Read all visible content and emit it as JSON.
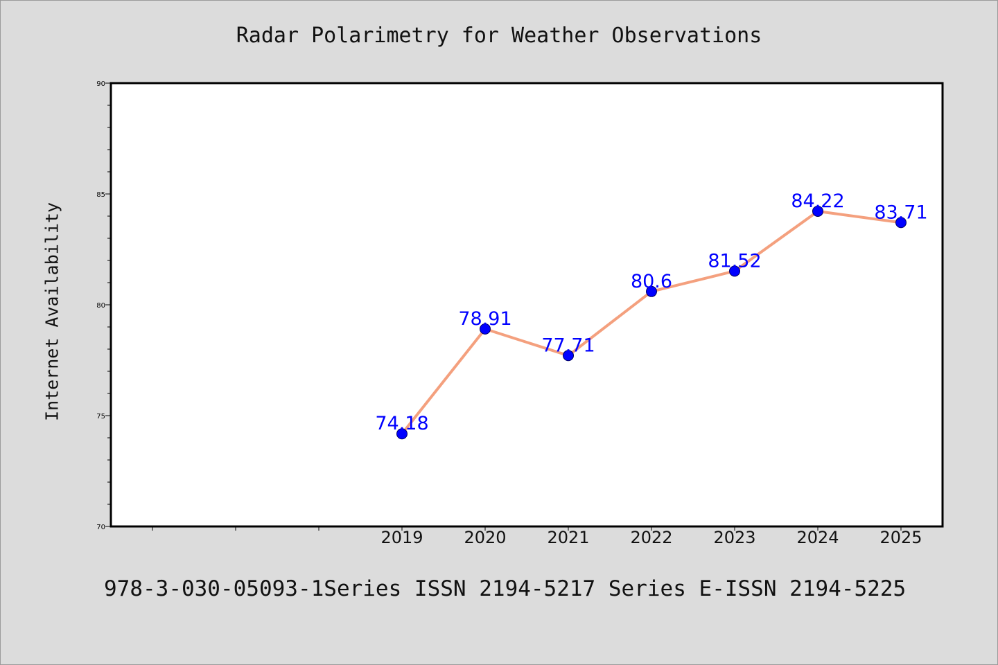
{
  "chart_data": {
    "type": "line",
    "title": "Radar Polarimetry for Weather Observations",
    "xlabel": "",
    "ylabel": "Internet Availability",
    "x": [
      "2019",
      "2020",
      "2021",
      "2022",
      "2023",
      "2024",
      "2025"
    ],
    "series": [
      {
        "values": [
          74.18,
          78.91,
          77.71,
          80.6,
          81.52,
          84.22,
          83.71
        ],
        "labels": [
          "74.18",
          "78.91",
          "77.71",
          "80.6",
          "81.52",
          "84.22",
          "83.71"
        ]
      }
    ],
    "ylim": [
      70,
      90
    ],
    "yticks": [
      70,
      75,
      80,
      85,
      90
    ],
    "grid": false,
    "legend": "none",
    "colors": {
      "line": "#f4a07e",
      "marker": "#0000ff",
      "data_label": "#0000ff",
      "plot_background": "#ffffff",
      "figure_background": "#dcdcdc"
    }
  },
  "footer_text": "978-3-030-05093-1Series ISSN 2194-5217 Series E-ISSN 2194-5225"
}
